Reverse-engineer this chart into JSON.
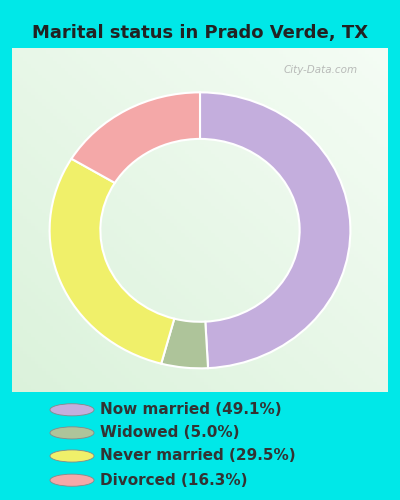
{
  "title": "Marital status in Prado Verde, TX",
  "slices": [
    49.1,
    5.0,
    29.5,
    16.3
  ],
  "labels": [
    "Now married (49.1%)",
    "Widowed (5.0%)",
    "Never married (29.5%)",
    "Divorced (16.3%)"
  ],
  "colors": [
    "#c4aedd",
    "#aec49a",
    "#f0f06a",
    "#f4a8a8"
  ],
  "start_angle": 90,
  "bg_color_cyan": "#00e8e8",
  "bg_color_chart": "#e8f5ee",
  "title_fontsize": 13,
  "legend_fontsize": 11,
  "watermark": "City-Data.com",
  "title_color": "#222222"
}
